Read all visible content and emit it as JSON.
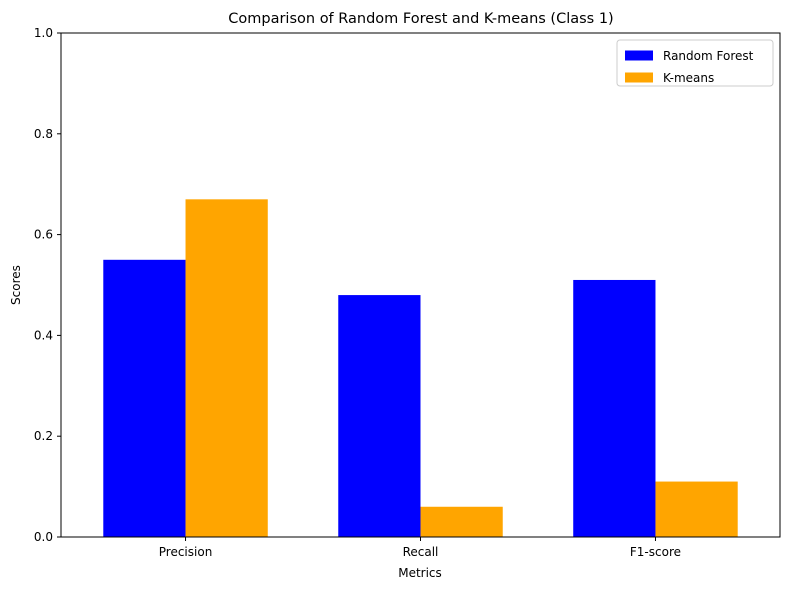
{
  "chart_data": {
    "type": "bar",
    "title": "Comparison of Random Forest and K-means (Class 1)",
    "xlabel": "Metrics",
    "ylabel": "Scores",
    "categories": [
      "Precision",
      "Recall",
      "F1-score"
    ],
    "series": [
      {
        "name": "Random Forest",
        "color": "#0000ff",
        "values": [
          0.55,
          0.48,
          0.51
        ]
      },
      {
        "name": "K-means",
        "color": "#ffa500",
        "values": [
          0.67,
          0.06,
          0.11
        ]
      }
    ],
    "ylim": [
      0,
      1.0
    ],
    "yticks": [
      "0.0",
      "0.2",
      "0.4",
      "0.6",
      "0.8",
      "1.0"
    ],
    "grid": false,
    "legend_position": "top-right"
  }
}
